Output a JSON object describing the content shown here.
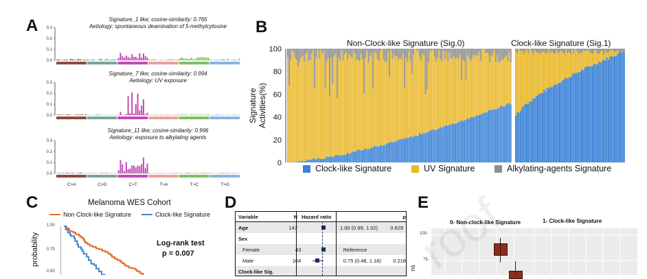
{
  "panels": {
    "a": {
      "letter": "A",
      "signatures": [
        {
          "line1": "Signature_1 like; cosine-similarity: 0.765",
          "line2": "Aetiology: spontaneous deamination of 5-methylcytosine",
          "ymax": "0.3",
          "yticks": [
            "0.3",
            "0.2",
            "0.1",
            "0.0"
          ]
        },
        {
          "line1": "Signature_7 like; cosine-similarity: 0.994",
          "line2": "Aetiology: UV exposure",
          "ymax": "0.3",
          "yticks": [
            "0.3",
            "0.2",
            "0.1",
            "0.0"
          ]
        },
        {
          "line1": "Signature_11 like; cosine-similarity: 0.996",
          "line2": "Aetiology: exposure to alkylating agents",
          "ymax": "0.3",
          "yticks": [
            "0.3",
            "0.2",
            "0.1",
            "0.0"
          ]
        }
      ],
      "mutation_types": [
        "C>A",
        "C>G",
        "C>T",
        "T>A",
        "T>C",
        "T>G"
      ],
      "colors": {
        "C>A": "#8b4a3c",
        "C>G": "#7aa49a",
        "C>T": "#c249b5",
        "T>A": "#e4a39d",
        "T>C": "#7dc063",
        "T>G": "#8ab4e0"
      }
    },
    "b": {
      "letter": "B",
      "ylabel": "Signature Activities(%)",
      "yticks": [
        "100",
        "80",
        "60",
        "40",
        "20",
        "0"
      ],
      "group_titles": [
        "Non-Clock-like Signature (Sig.0)",
        "Clock-like Signature (Sig.1)"
      ],
      "legend": [
        {
          "label": "Clock-like Signature",
          "color": "#3b82d6"
        },
        {
          "label": "UV Signature",
          "color": "#e9b829"
        },
        {
          "label": "Alkylating-agents Signature",
          "color": "#8e8e8e"
        }
      ]
    },
    "c": {
      "letter": "C",
      "title": "Melanoma  WES Cohort",
      "legend": [
        {
          "label": "Non Clock-like Signature",
          "color": "#e06b2a"
        },
        {
          "label": "Clock-like Signature",
          "color": "#3d86d6"
        }
      ],
      "ylabel": "probability",
      "yticks": [
        "1.00",
        "0.75",
        "0.50"
      ],
      "test_label": "Log-rank test",
      "p_value": "p = 0.007"
    },
    "d": {
      "letter": "D",
      "headers": {
        "variable": "Variable",
        "n": "N",
        "hr": "Hazard ratio",
        "p": "p"
      },
      "rows": [
        {
          "variable": "Age",
          "n": "147",
          "est": "1.00 (0.99, 1.02)",
          "p": "0.629",
          "bold": true
        },
        {
          "variable": "Sex",
          "n": "",
          "est": "",
          "p": "",
          "bold": true
        },
        {
          "variable": "Female",
          "n": "43",
          "est": "Reference",
          "p": "",
          "bold": false
        },
        {
          "variable": "Male",
          "n": "104",
          "est": "0.75 (0.48, 1.18)",
          "p": "0.218",
          "bold": false
        },
        {
          "variable": "Clock-like Sig.",
          "n": "",
          "est": "",
          "p": "",
          "bold": true
        }
      ]
    },
    "e": {
      "letter": "E",
      "facets": [
        "0- Non-clock-like Signature",
        "1- Clock-like Signature"
      ],
      "yticks": [
        "100-",
        "75-"
      ],
      "ylabel": "ns"
    }
  },
  "watermark": "roof"
}
